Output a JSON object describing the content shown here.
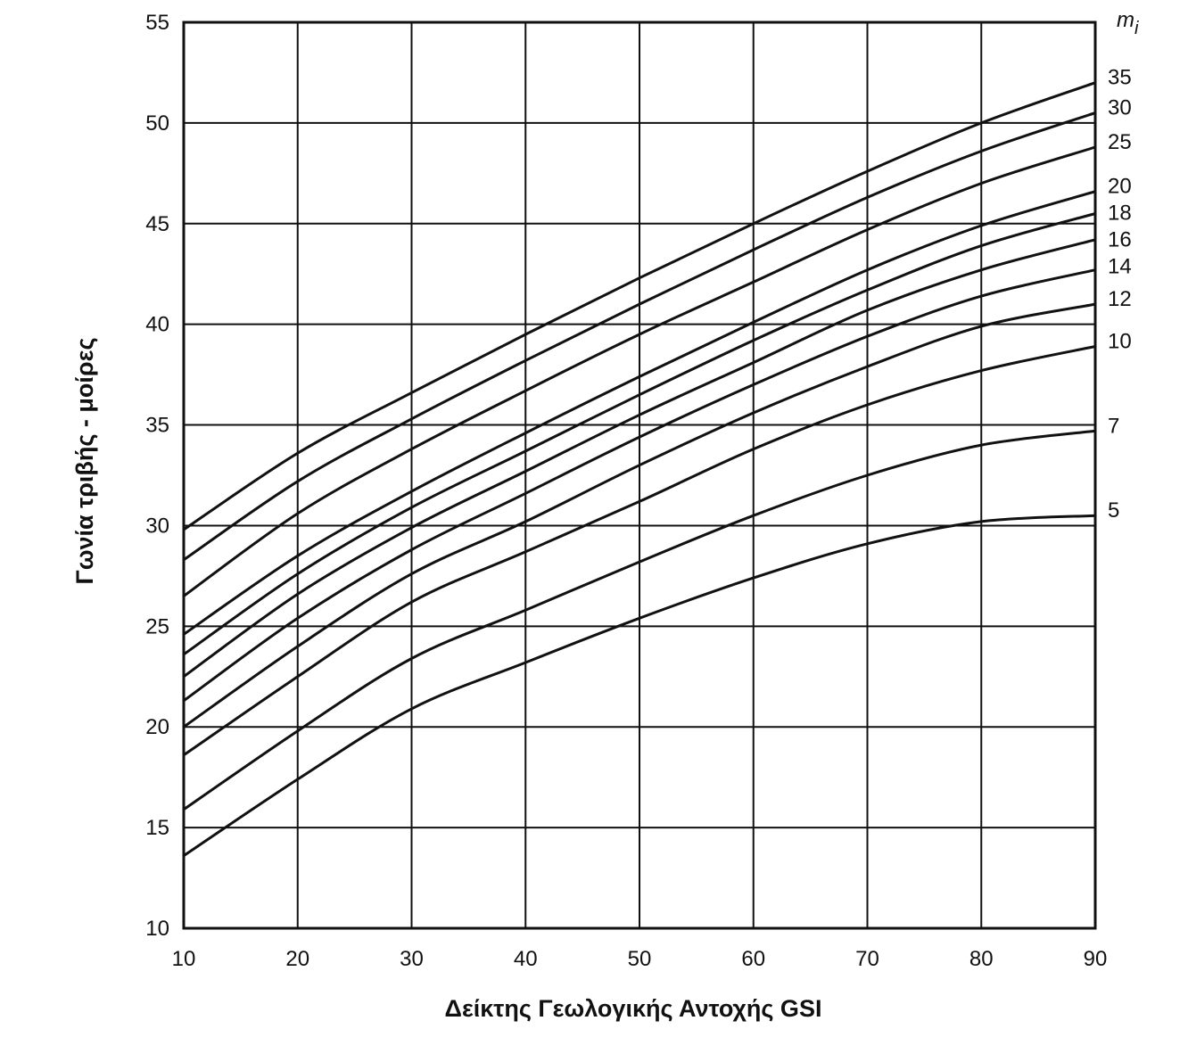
{
  "chart_data": {
    "type": "line",
    "title": "",
    "xlabel": "Δείκτης Γεωλογικής Αντοχής GSI",
    "ylabel": "Γωνία τριβής - μοίρες",
    "xlim": [
      10,
      90
    ],
    "ylim": [
      10,
      55
    ],
    "x_ticks": [
      10,
      20,
      30,
      40,
      50,
      60,
      70,
      80,
      90
    ],
    "y_ticks": [
      10,
      15,
      20,
      25,
      30,
      35,
      40,
      45,
      50,
      55
    ],
    "grid": true,
    "legend_title": "mi",
    "legend_title_main": "m",
    "legend_title_sub": "i",
    "x": [
      10,
      20,
      30,
      40,
      50,
      60,
      70,
      80,
      90
    ],
    "series": [
      {
        "name": "35",
        "values": [
          29.8,
          33.6,
          36.6,
          39.5,
          42.3,
          45.0,
          47.6,
          50.0,
          52.0
        ]
      },
      {
        "name": "30",
        "values": [
          28.3,
          32.2,
          35.3,
          38.2,
          41.0,
          43.7,
          46.3,
          48.6,
          50.5
        ]
      },
      {
        "name": "25",
        "values": [
          26.5,
          30.6,
          33.8,
          36.7,
          39.5,
          42.1,
          44.7,
          47.0,
          48.8
        ]
      },
      {
        "name": "20",
        "values": [
          24.6,
          28.5,
          31.7,
          34.6,
          37.4,
          40.1,
          42.7,
          44.9,
          46.6
        ]
      },
      {
        "name": "18",
        "values": [
          23.6,
          27.6,
          30.9,
          33.7,
          36.5,
          39.2,
          41.7,
          43.9,
          45.5
        ]
      },
      {
        "name": "16",
        "values": [
          22.5,
          26.6,
          29.9,
          32.7,
          35.5,
          38.1,
          40.7,
          42.7,
          44.2
        ]
      },
      {
        "name": "14",
        "values": [
          21.3,
          25.4,
          28.8,
          31.6,
          34.4,
          37.0,
          39.4,
          41.4,
          42.7
        ]
      },
      {
        "name": "12",
        "values": [
          20.0,
          24.0,
          27.6,
          30.2,
          33.0,
          35.6,
          37.9,
          39.9,
          41.0
        ]
      },
      {
        "name": "10",
        "values": [
          18.6,
          22.5,
          26.2,
          28.7,
          31.2,
          33.8,
          36.0,
          37.7,
          38.9
        ]
      },
      {
        "name": "7",
        "values": [
          15.9,
          19.8,
          23.4,
          25.8,
          28.2,
          30.5,
          32.5,
          34.0,
          34.7
        ]
      },
      {
        "name": "5",
        "values": [
          13.6,
          17.4,
          20.9,
          23.2,
          25.4,
          27.4,
          29.1,
          30.2,
          30.5
        ]
      }
    ]
  }
}
